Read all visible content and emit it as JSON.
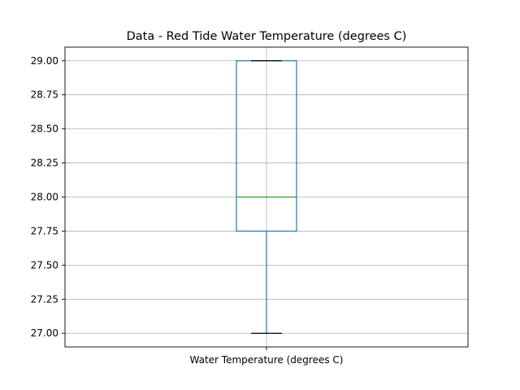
{
  "chart_data": {
    "type": "box",
    "title": "Data - Red Tide Water Temperature (degrees C)",
    "xlabel": "",
    "ylabel": "",
    "categories": [
      "Water Temperature (degrees C)"
    ],
    "ylim": [
      26.9,
      29.1
    ],
    "yticks": [
      27.0,
      27.25,
      27.5,
      27.75,
      28.0,
      28.25,
      28.5,
      28.75,
      29.0
    ],
    "ytick_labels": [
      "27.00",
      "27.25",
      "27.50",
      "27.75",
      "28.00",
      "28.25",
      "28.50",
      "28.75",
      "29.00"
    ],
    "grid": true,
    "boxes": [
      {
        "whisker_low": 27.0,
        "q1": 27.75,
        "median": 28.0,
        "q3": 29.0,
        "whisker_high": 29.0
      }
    ],
    "colors": {
      "box": "#1f77b4",
      "median": "#2ca02c",
      "cap": "#000000",
      "grid": "#b0b0b0"
    }
  }
}
